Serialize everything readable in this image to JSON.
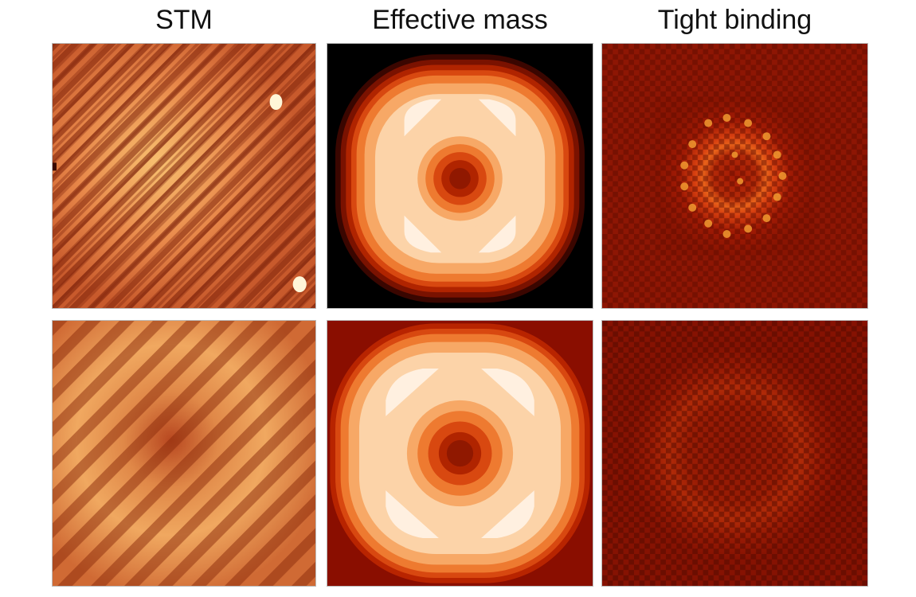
{
  "columns": [
    {
      "title": "STM"
    },
    {
      "title": "Effective mass"
    },
    {
      "title": "Tight binding"
    }
  ]
}
